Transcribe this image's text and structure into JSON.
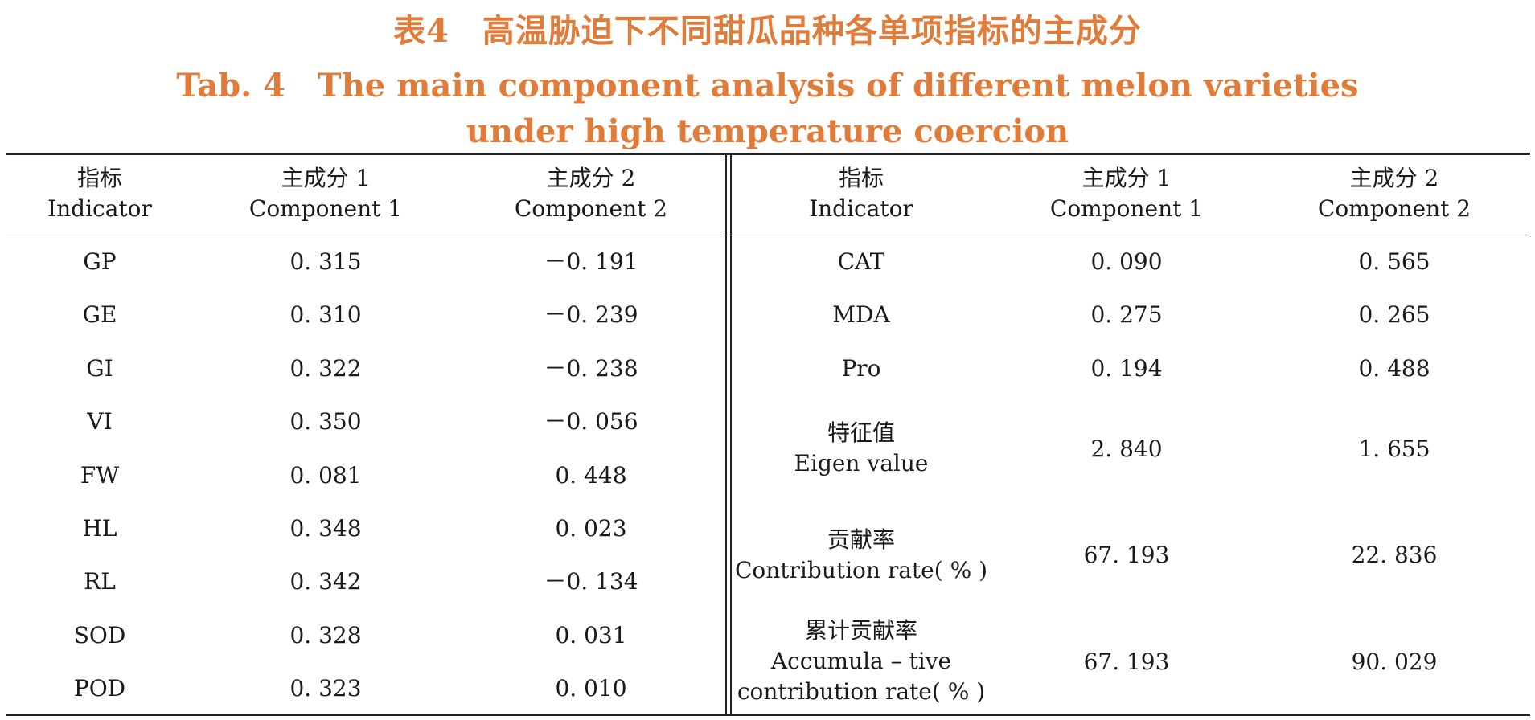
{
  "caption": {
    "cn": "表4　高温胁迫下不同甜瓜品种各单项指标的主成分",
    "en_line1": "Tab. 4　The main component analysis of different melon varieties",
    "en_line2": "under high temperature coercion"
  },
  "headers": {
    "indicator_cn": "指标",
    "indicator_en": "Indicator",
    "comp1_cn": "主成分 1",
    "comp1_en": "Component 1",
    "comp2_cn": "主成分 2",
    "comp2_en": "Component 2"
  },
  "left_rows": [
    {
      "indicator": "GP",
      "c1": "0. 315",
      "c2": "－0. 191"
    },
    {
      "indicator": "GE",
      "c1": "0. 310",
      "c2": "－0. 239"
    },
    {
      "indicator": "GI",
      "c1": "0. 322",
      "c2": "－0. 238"
    },
    {
      "indicator": "VI",
      "c1": "0. 350",
      "c2": "－0. 056"
    },
    {
      "indicator": "FW",
      "c1": "0. 081",
      "c2": "0. 448"
    },
    {
      "indicator": "HL",
      "c1": "0. 348",
      "c2": "0. 023"
    },
    {
      "indicator": "RL",
      "c1": "0. 342",
      "c2": "－0. 134"
    },
    {
      "indicator": "SOD",
      "c1": "0. 328",
      "c2": "0. 031"
    },
    {
      "indicator": "POD",
      "c1": "0. 323",
      "c2": "0. 010"
    }
  ],
  "right_rows": [
    {
      "indicator": "CAT",
      "c1": "0. 090",
      "c2": "0. 565"
    },
    {
      "indicator": "MDA",
      "c1": "0. 275",
      "c2": "0. 265"
    },
    {
      "indicator": "Pro",
      "c1": "0. 194",
      "c2": "0. 488"
    }
  ],
  "summary_rows": [
    {
      "label_cn": "特征值",
      "label_en": "Eigen value",
      "label_en2": "",
      "c1": "2. 840",
      "c2": "1. 655"
    },
    {
      "label_cn": "贡献率",
      "label_en": "Contribution rate( % )",
      "label_en2": "",
      "c1": "67. 193",
      "c2": "22. 836"
    },
    {
      "label_cn": "累计贡献率",
      "label_en": "Accumula – tive",
      "label_en2": "contribution rate( % )",
      "c1": "67. 193",
      "c2": "90. 029"
    }
  ]
}
